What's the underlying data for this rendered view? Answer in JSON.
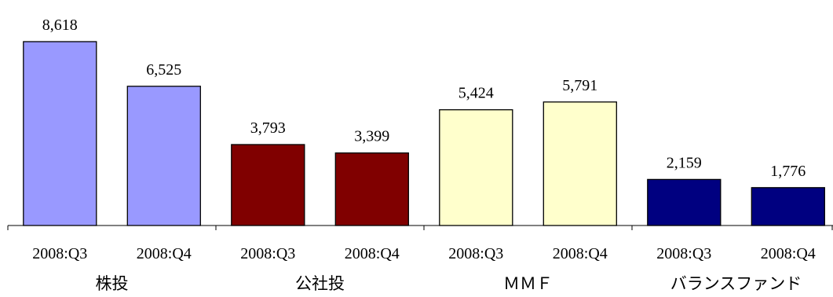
{
  "chart_data": {
    "type": "bar",
    "groups": [
      {
        "label": "株投",
        "color": "#9999FF",
        "bars": [
          {
            "period": "2008:Q3",
            "value": 8618,
            "label": "8,618"
          },
          {
            "period": "2008:Q4",
            "value": 6525,
            "label": "6,525"
          }
        ]
      },
      {
        "label": "公社投",
        "color": "#800000",
        "bars": [
          {
            "period": "2008:Q3",
            "value": 3793,
            "label": "3,793"
          },
          {
            "period": "2008:Q4",
            "value": 3399,
            "label": "3,399"
          }
        ]
      },
      {
        "label": "ＭＭＦ",
        "color": "#FFFFCC",
        "bars": [
          {
            "period": "2008:Q3",
            "value": 5424,
            "label": "5,424"
          },
          {
            "period": "2008:Q4",
            "value": 5791,
            "label": "5,791"
          }
        ]
      },
      {
        "label": "バランスファンド",
        "color": "#000080",
        "bars": [
          {
            "period": "2008:Q3",
            "value": 2159,
            "label": "2,159"
          },
          {
            "period": "2008:Q4",
            "value": 1776,
            "label": "1,776"
          }
        ]
      }
    ],
    "ylim": [
      0,
      8618
    ],
    "grid": false,
    "legend": "none"
  }
}
